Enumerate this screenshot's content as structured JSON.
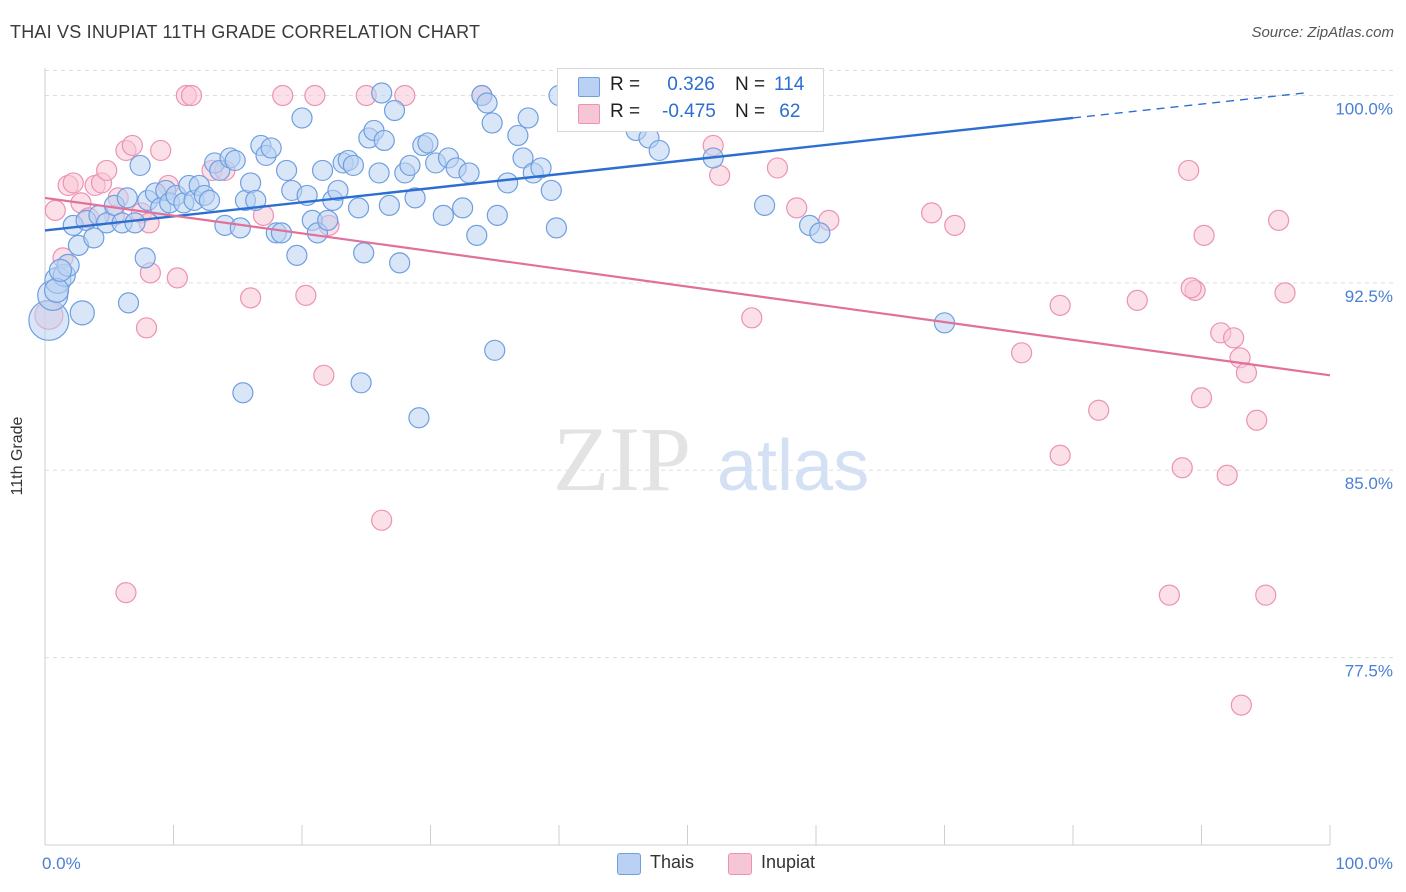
{
  "title": "THAI VS INUPIAT 11TH GRADE CORRELATION CHART",
  "source": "Source: ZipAtlas.com",
  "watermark": {
    "zip": "ZIP",
    "atlas": "atlas"
  },
  "colors": {
    "thais_fill": "#b9d1f3",
    "thais_stroke": "#6e9fe0",
    "thais_line": "#2c6fd1",
    "inupiat_fill": "#f7c6d6",
    "inupiat_stroke": "#ec92b3",
    "inupiat_line": "#e0719b",
    "tick_label": "#4a7fd4",
    "grid": "#dddddd"
  },
  "legend": {
    "rows": [
      {
        "r_label": "R =",
        "r_value": " 0.326",
        "n_label": "N =",
        "n_value": "114"
      },
      {
        "r_label": "R =",
        "r_value": "-0.475",
        "n_label": "N =",
        "n_value": " 62"
      }
    ]
  },
  "bottom_legend": {
    "thais": "Thais",
    "inupiat": "Inupiat"
  },
  "chart_data": {
    "type": "scatter",
    "title": "THAI VS INUPIAT 11TH GRADE CORRELATION CHART",
    "xlabel": "",
    "ylabel": "11th Grade",
    "xlim": [
      0,
      100
    ],
    "ylim": [
      70,
      101.5
    ],
    "x_ticks_labels": [
      "0.0%",
      "100.0%"
    ],
    "y_ticks": [
      77.5,
      85.0,
      92.5,
      100.0
    ],
    "y_tick_labels": [
      "77.5%",
      "85.0%",
      "92.5%",
      "100.0%"
    ],
    "grid": "horizontal dashed",
    "series": [
      {
        "name": "Thais",
        "trend": {
          "x0": 0,
          "y0": 94.6,
          "x1": 80,
          "y1": 99.1,
          "dash_to_x": 98,
          "dash_to_y": 100.1
        },
        "points": [
          [
            0.3,
            91.0,
            20
          ],
          [
            0.6,
            92.0,
            15
          ],
          [
            1.0,
            92.6,
            13
          ],
          [
            1.5,
            92.8,
            11
          ],
          [
            1.8,
            93.2,
            11
          ],
          [
            2.2,
            94.8,
            10
          ],
          [
            2.6,
            94.0,
            10
          ],
          [
            3.2,
            95.0,
            10
          ],
          [
            3.8,
            94.3,
            10
          ],
          [
            4.2,
            95.2,
            10
          ],
          [
            4.8,
            94.9,
            10
          ],
          [
            5.4,
            95.6,
            10
          ],
          [
            6.0,
            94.9,
            10
          ],
          [
            6.4,
            95.9,
            10
          ],
          [
            7.0,
            94.9,
            10
          ],
          [
            7.4,
            97.2,
            10
          ],
          [
            8.0,
            95.8,
            10
          ],
          [
            8.6,
            96.1,
            10
          ],
          [
            9.0,
            95.5,
            10
          ],
          [
            9.4,
            96.2,
            10
          ],
          [
            9.7,
            95.7,
            10
          ],
          [
            10.2,
            96.0,
            10
          ],
          [
            10.8,
            95.7,
            10
          ],
          [
            11.2,
            96.4,
            10
          ],
          [
            11.6,
            95.8,
            10
          ],
          [
            12.0,
            96.4,
            10
          ],
          [
            12.4,
            96.0,
            10
          ],
          [
            12.8,
            95.8,
            10
          ],
          [
            13.2,
            97.3,
            10
          ],
          [
            13.6,
            97.0,
            10
          ],
          [
            14.0,
            94.8,
            10
          ],
          [
            14.4,
            97.5,
            10
          ],
          [
            14.8,
            97.4,
            10
          ],
          [
            15.2,
            94.7,
            10
          ],
          [
            15.6,
            95.8,
            10
          ],
          [
            16.0,
            96.5,
            10
          ],
          [
            16.4,
            95.8,
            10
          ],
          [
            16.8,
            98.0,
            10
          ],
          [
            17.2,
            97.6,
            10
          ],
          [
            17.6,
            97.9,
            10
          ],
          [
            18.0,
            94.5,
            10
          ],
          [
            18.4,
            94.5,
            10
          ],
          [
            18.8,
            97.0,
            10
          ],
          [
            19.2,
            96.2,
            10
          ],
          [
            19.6,
            93.6,
            10
          ],
          [
            20.0,
            99.1,
            10
          ],
          [
            20.4,
            96.0,
            10
          ],
          [
            20.8,
            95.0,
            10
          ],
          [
            21.2,
            94.5,
            10
          ],
          [
            21.6,
            97.0,
            10
          ],
          [
            22.0,
            95.0,
            10
          ],
          [
            22.4,
            95.8,
            10
          ],
          [
            22.8,
            96.2,
            10
          ],
          [
            23.2,
            97.3,
            10
          ],
          [
            23.6,
            97.4,
            10
          ],
          [
            24.0,
            97.2,
            10
          ],
          [
            24.4,
            95.5,
            10
          ],
          [
            24.8,
            93.7,
            10
          ],
          [
            25.2,
            98.3,
            10
          ],
          [
            25.6,
            98.6,
            10
          ],
          [
            26.0,
            96.9,
            10
          ],
          [
            26.4,
            98.2,
            10
          ],
          [
            26.8,
            95.6,
            10
          ],
          [
            27.2,
            99.4,
            10
          ],
          [
            27.6,
            93.3,
            10
          ],
          [
            28.0,
            96.9,
            10
          ],
          [
            28.4,
            97.2,
            10
          ],
          [
            28.8,
            95.9,
            10
          ],
          [
            29.4,
            98.0,
            10
          ],
          [
            29.8,
            98.1,
            10
          ],
          [
            30.4,
            97.3,
            10
          ],
          [
            31.0,
            95.2,
            10
          ],
          [
            31.4,
            97.5,
            10
          ],
          [
            32.0,
            97.1,
            10
          ],
          [
            32.5,
            95.5,
            10
          ],
          [
            33.0,
            96.9,
            10
          ],
          [
            33.6,
            94.4,
            10
          ],
          [
            34.0,
            100.0,
            10
          ],
          [
            34.4,
            99.7,
            10
          ],
          [
            34.8,
            98.9,
            10
          ],
          [
            35.2,
            95.2,
            10
          ],
          [
            36.0,
            96.5,
            10
          ],
          [
            36.8,
            98.4,
            10
          ],
          [
            37.2,
            97.5,
            10
          ],
          [
            37.6,
            99.1,
            10
          ],
          [
            38.0,
            96.9,
            10
          ],
          [
            38.6,
            97.1,
            10
          ],
          [
            39.4,
            96.2,
            10
          ],
          [
            39.8,
            94.7,
            10
          ],
          [
            40.0,
            100.0,
            10
          ],
          [
            41.0,
            99.0,
            10
          ],
          [
            42.0,
            100.0,
            10
          ],
          [
            43.0,
            99.8,
            10
          ],
          [
            44.0,
            99.9,
            10
          ],
          [
            45.0,
            99.7,
            10
          ],
          [
            46.0,
            98.6,
            10
          ],
          [
            47.0,
            98.3,
            10
          ],
          [
            47.8,
            97.8,
            10
          ],
          [
            48.4,
            99.6,
            10
          ],
          [
            50.0,
            99.6,
            10
          ],
          [
            52.0,
            97.5,
            10
          ],
          [
            56.0,
            95.6,
            10
          ],
          [
            59.5,
            94.8,
            10
          ],
          [
            60.3,
            94.5,
            10
          ],
          [
            70.0,
            90.9,
            10
          ],
          [
            6.5,
            91.7,
            10
          ],
          [
            7.8,
            93.5,
            10
          ],
          [
            15.4,
            88.1,
            10
          ],
          [
            24.6,
            88.5,
            10
          ],
          [
            29.1,
            87.1,
            10
          ],
          [
            35.0,
            89.8,
            10
          ],
          [
            0.9,
            92.2,
            12
          ],
          [
            2.9,
            91.3,
            12
          ],
          [
            1.2,
            93.0,
            11
          ],
          [
            45.8,
            100.0,
            10
          ],
          [
            26.2,
            100.1,
            10
          ]
        ]
      },
      {
        "name": "Inupiat",
        "trend": {
          "x0": 0,
          "y0": 95.9,
          "x1": 100,
          "y1": 88.8
        },
        "points": [
          [
            0.3,
            91.2,
            14
          ],
          [
            0.8,
            95.4,
            10
          ],
          [
            1.4,
            93.5,
            10
          ],
          [
            1.8,
            96.4,
            10
          ],
          [
            2.2,
            96.5,
            10
          ],
          [
            2.8,
            95.7,
            10
          ],
          [
            3.4,
            95.1,
            10
          ],
          [
            3.9,
            96.4,
            10
          ],
          [
            4.4,
            96.5,
            10
          ],
          [
            4.8,
            97.0,
            10
          ],
          [
            5.4,
            95.2,
            10
          ],
          [
            5.7,
            95.9,
            10
          ],
          [
            6.3,
            97.8,
            10
          ],
          [
            6.8,
            98.0,
            10
          ],
          [
            7.5,
            95.3,
            10
          ],
          [
            8.1,
            94.9,
            10
          ],
          [
            9.0,
            97.8,
            10
          ],
          [
            9.6,
            96.4,
            10
          ],
          [
            10.3,
            92.7,
            10
          ],
          [
            8.2,
            92.9,
            10
          ],
          [
            7.9,
            90.7,
            10
          ],
          [
            11.0,
            100.0,
            10
          ],
          [
            11.4,
            100.0,
            10
          ],
          [
            13.0,
            97.0,
            10
          ],
          [
            14.0,
            97.0,
            10
          ],
          [
            16.0,
            91.9,
            10
          ],
          [
            17.0,
            95.2,
            10
          ],
          [
            18.5,
            100.0,
            10
          ],
          [
            20.3,
            92.0,
            10
          ],
          [
            21.0,
            100.0,
            10
          ],
          [
            21.7,
            88.8,
            10
          ],
          [
            22.1,
            94.8,
            10
          ],
          [
            25.0,
            100.0,
            10
          ],
          [
            26.2,
            83.0,
            10
          ],
          [
            28.0,
            100.0,
            10
          ],
          [
            34.0,
            100.0,
            10
          ],
          [
            55.0,
            99.9,
            10
          ],
          [
            55.5,
            99.9,
            10
          ],
          [
            57.0,
            99.5,
            10
          ],
          [
            52.0,
            98.0,
            10
          ],
          [
            52.5,
            96.8,
            10
          ],
          [
            55.0,
            91.1,
            10
          ],
          [
            57.0,
            97.1,
            10
          ],
          [
            58.5,
            95.5,
            10
          ],
          [
            61.0,
            95.0,
            10
          ],
          [
            69.0,
            95.3,
            10
          ],
          [
            70.8,
            94.8,
            10
          ],
          [
            76.0,
            89.7,
            10
          ],
          [
            79.0,
            91.6,
            10
          ],
          [
            79.0,
            85.6,
            10
          ],
          [
            82.0,
            87.4,
            10
          ],
          [
            85.0,
            91.8,
            10
          ],
          [
            89.0,
            97.0,
            10
          ],
          [
            89.5,
            92.2,
            10
          ],
          [
            90.0,
            87.9,
            10
          ],
          [
            90.2,
            94.4,
            10
          ],
          [
            91.5,
            90.5,
            10
          ],
          [
            92.0,
            84.8,
            10
          ],
          [
            92.5,
            90.3,
            10
          ],
          [
            93.0,
            89.5,
            10
          ],
          [
            93.5,
            88.9,
            10
          ],
          [
            94.3,
            87.0,
            10
          ],
          [
            96.0,
            95.0,
            10
          ],
          [
            96.5,
            92.1,
            10
          ],
          [
            95.0,
            80.0,
            10
          ],
          [
            87.5,
            80.0,
            10
          ],
          [
            93.1,
            75.6,
            10
          ],
          [
            6.3,
            80.1,
            10
          ],
          [
            88.5,
            85.1,
            10
          ],
          [
            89.2,
            92.3,
            10
          ]
        ]
      }
    ]
  }
}
